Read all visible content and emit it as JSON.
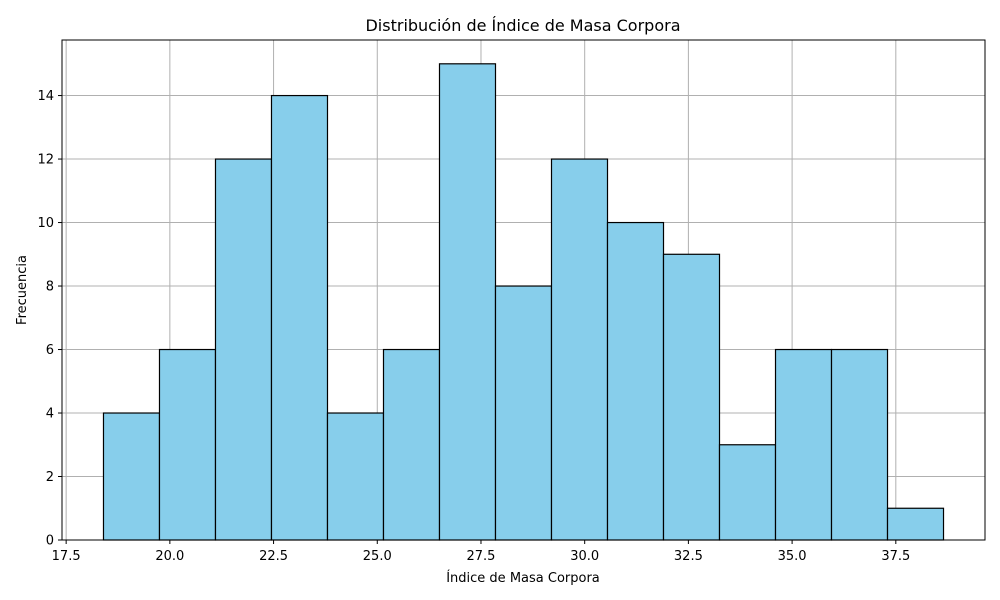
{
  "chart_data": {
    "type": "bar",
    "title": "Distribución de Índice de Masa Corpora",
    "xlabel": "Índice de Masa Corpora",
    "ylabel": "Frecuencia",
    "bins": [
      {
        "x0": 18.4,
        "x1": 19.75,
        "count": 4
      },
      {
        "x0": 19.75,
        "x1": 21.1,
        "count": 6
      },
      {
        "x0": 21.1,
        "x1": 22.45,
        "count": 12
      },
      {
        "x0": 22.45,
        "x1": 23.8,
        "count": 14
      },
      {
        "x0": 23.8,
        "x1": 25.15,
        "count": 4
      },
      {
        "x0": 25.15,
        "x1": 26.5,
        "count": 6
      },
      {
        "x0": 26.5,
        "x1": 27.85,
        "count": 15
      },
      {
        "x0": 27.85,
        "x1": 29.2,
        "count": 8
      },
      {
        "x0": 29.2,
        "x1": 30.55,
        "count": 12
      },
      {
        "x0": 30.55,
        "x1": 31.9,
        "count": 10
      },
      {
        "x0": 31.9,
        "x1": 33.25,
        "count": 9
      },
      {
        "x0": 33.25,
        "x1": 34.6,
        "count": 3
      },
      {
        "x0": 34.6,
        "x1": 35.95,
        "count": 6
      },
      {
        "x0": 35.95,
        "x1": 37.3,
        "count": 6
      },
      {
        "x0": 37.3,
        "x1": 38.65,
        "count": 1
      }
    ],
    "xlim": [
      17.4,
      39.65
    ],
    "ylim": [
      0,
      15.75
    ],
    "xticks": [
      {
        "value": 17.5,
        "label": "17.5"
      },
      {
        "value": 20.0,
        "label": "20.0"
      },
      {
        "value": 22.5,
        "label": "22.5"
      },
      {
        "value": 25.0,
        "label": "25.0"
      },
      {
        "value": 27.5,
        "label": "27.5"
      },
      {
        "value": 30.0,
        "label": "30.0"
      },
      {
        "value": 32.5,
        "label": "32.5"
      },
      {
        "value": 35.0,
        "label": "35.0"
      },
      {
        "value": 37.5,
        "label": "37.5"
      }
    ],
    "yticks": [
      {
        "value": 0,
        "label": "0"
      },
      {
        "value": 2,
        "label": "2"
      },
      {
        "value": 4,
        "label": "4"
      },
      {
        "value": 6,
        "label": "6"
      },
      {
        "value": 8,
        "label": "8"
      },
      {
        "value": 10,
        "label": "10"
      },
      {
        "value": 12,
        "label": "12"
      },
      {
        "value": 14,
        "label": "14"
      }
    ],
    "grid": true,
    "bar_color": "#87ceeb",
    "edge_color": "#000000",
    "grid_color": "#b0b0b0"
  }
}
